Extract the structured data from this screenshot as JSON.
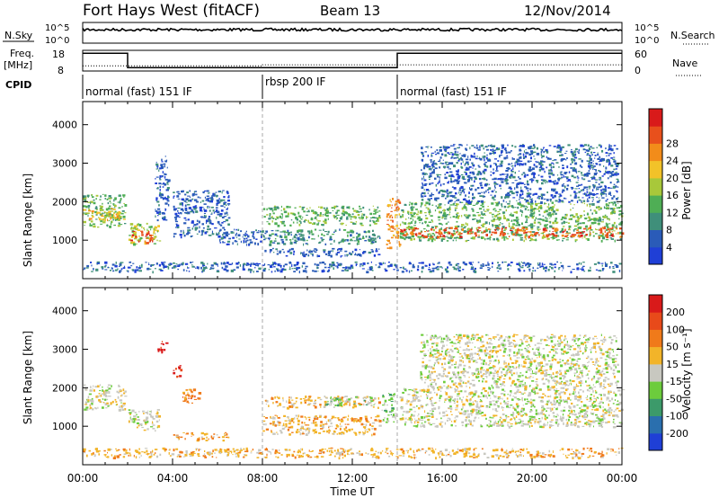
{
  "header": {
    "station": "Fort Hays West (fitACF)",
    "beam": "Beam 13",
    "date": "12/Nov/2014"
  },
  "noise_panel": {
    "left_label": "N.Sky",
    "left_ticks": [
      "10^5",
      "10^0"
    ],
    "right_ticks": [
      "10^5",
      "10^0"
    ],
    "right_label": "N.Search"
  },
  "freq_panel": {
    "left_label_line1": "Freq.",
    "left_label_line2": "[MHz]",
    "left_ticks": [
      "18",
      "8"
    ],
    "right_ticks": [
      "60",
      "0"
    ],
    "right_label": "Nave",
    "freq_steps": [
      {
        "from": 0,
        "to": 2,
        "value": 17.5
      },
      {
        "from": 2,
        "to": 14,
        "value": 10.5
      },
      {
        "from": 14,
        "to": 24,
        "value": 17.5
      }
    ],
    "nave_steps": [
      {
        "from": 0,
        "to": 8,
        "value": 15
      },
      {
        "from": 8,
        "to": 24,
        "value": 18
      }
    ]
  },
  "cpid": {
    "label": "CPID",
    "segments": [
      {
        "start": 0,
        "text": "normal (fast) 151 IF"
      },
      {
        "start": 8,
        "text": "rbsp 200 IF"
      },
      {
        "start": 14,
        "text": "normal (fast) 151 IF"
      }
    ]
  },
  "colors": {
    "power_scale": [
      "#1f3fd6",
      "#2a5bb8",
      "#3f8f7a",
      "#4fae55",
      "#a8c83a",
      "#f2c229",
      "#f28c1a",
      "#e8501c",
      "#d91a1a"
    ],
    "velocity_scale": [
      "#1f3fd6",
      "#2a6fae",
      "#3c9a6a",
      "#6ccc3c",
      "#c8c8c0",
      "#f2b429",
      "#f07a1a",
      "#e84a1a",
      "#d91a1a"
    ]
  },
  "chart_data": [
    {
      "type": "heatmap",
      "panel": "power",
      "ylabel": "Slant Range [km]",
      "ylim": [
        0,
        4600
      ],
      "xlim": [
        0,
        24
      ],
      "yticks": [
        1000,
        2000,
        3000,
        4000
      ],
      "colorbar_label": "Power [dB]",
      "colorbar_ticks": [
        "4",
        "8",
        "12",
        "16",
        "20",
        "24",
        "28"
      ],
      "bands": [
        {
          "t0": 0.0,
          "t1": 1.9,
          "r0": 1350,
          "r1": 2200,
          "level": 3
        },
        {
          "t0": 0.0,
          "t1": 1.9,
          "r0": 1550,
          "r1": 1850,
          "level": 5
        },
        {
          "t0": 2.0,
          "t1": 3.4,
          "r0": 900,
          "r1": 1450,
          "level": 4
        },
        {
          "t0": 2.1,
          "t1": 3.1,
          "r0": 950,
          "r1": 1250,
          "level": 7
        },
        {
          "t0": 3.2,
          "t1": 3.8,
          "r0": 1500,
          "r1": 3200,
          "level": 1
        },
        {
          "t0": 4.0,
          "t1": 6.5,
          "r0": 1100,
          "r1": 2300,
          "level": 1
        },
        {
          "t0": 6.0,
          "t1": 8.0,
          "r0": 900,
          "r1": 1300,
          "level": 1
        },
        {
          "t0": 8.0,
          "t1": 13.2,
          "r0": 1400,
          "r1": 1900,
          "level": 3
        },
        {
          "t0": 8.0,
          "t1": 13.2,
          "r0": 900,
          "r1": 1300,
          "level": 2
        },
        {
          "t0": 8.0,
          "t1": 13.2,
          "r0": 600,
          "r1": 800,
          "level": 1
        },
        {
          "t0": 13.5,
          "t1": 14.1,
          "r0": 800,
          "r1": 2100,
          "level": 6
        },
        {
          "t0": 14.1,
          "t1": 24.0,
          "r0": 1000,
          "r1": 2000,
          "level": 3
        },
        {
          "t0": 14.1,
          "t1": 24.0,
          "r0": 1100,
          "r1": 1350,
          "level": 7
        },
        {
          "t0": 15.0,
          "t1": 23.8,
          "r0": 2000,
          "r1": 3500,
          "level": 1
        },
        {
          "t0": 0.0,
          "t1": 24.0,
          "r0": 200,
          "r1": 450,
          "level": 1
        }
      ]
    },
    {
      "type": "heatmap",
      "panel": "velocity",
      "xlabel": "Time UT",
      "ylabel": "Slant Range [km]",
      "ylim": [
        0,
        4600
      ],
      "xlim": [
        0,
        24
      ],
      "yticks": [
        1000,
        2000,
        3000,
        4000
      ],
      "xticks": [
        "00:00",
        "04:00",
        "08:00",
        "12:00",
        "16:00",
        "20:00",
        "00:00"
      ],
      "colorbar_label": "Velocity [m s⁻¹]",
      "colorbar_ticks": [
        "-200",
        "-100",
        "-50",
        "-15",
        "15",
        "50",
        "100",
        "200"
      ],
      "bands": [
        {
          "t0": 0.0,
          "t1": 1.9,
          "r0": 1450,
          "r1": 2100,
          "level": 4
        },
        {
          "t0": 2.0,
          "t1": 3.4,
          "r0": 900,
          "r1": 1450,
          "level": 4
        },
        {
          "t0": 3.3,
          "t1": 3.7,
          "r0": 2900,
          "r1": 3250,
          "level": 8
        },
        {
          "t0": 4.0,
          "t1": 4.4,
          "r0": 2300,
          "r1": 2600,
          "level": 8
        },
        {
          "t0": 4.4,
          "t1": 5.2,
          "r0": 1600,
          "r1": 2000,
          "level": 6
        },
        {
          "t0": 4.0,
          "t1": 6.5,
          "r0": 650,
          "r1": 850,
          "level": 5
        },
        {
          "t0": 8.0,
          "t1": 13.2,
          "r0": 800,
          "r1": 1300,
          "level": 5
        },
        {
          "t0": 8.0,
          "t1": 13.2,
          "r0": 1500,
          "r1": 1800,
          "level": 5
        },
        {
          "t0": 10.8,
          "t1": 13.0,
          "r0": 1550,
          "r1": 1800,
          "level": 3
        },
        {
          "t0": 13.3,
          "t1": 13.9,
          "r0": 1100,
          "r1": 1900,
          "level": 3
        },
        {
          "t0": 14.1,
          "t1": 24.0,
          "r0": 1000,
          "r1": 2000,
          "level": 4
        },
        {
          "t0": 15.0,
          "t1": 23.8,
          "r0": 2000,
          "r1": 3400,
          "level": 4
        },
        {
          "t0": 0.0,
          "t1": 24.0,
          "r0": 200,
          "r1": 450,
          "level": 5
        }
      ]
    }
  ]
}
